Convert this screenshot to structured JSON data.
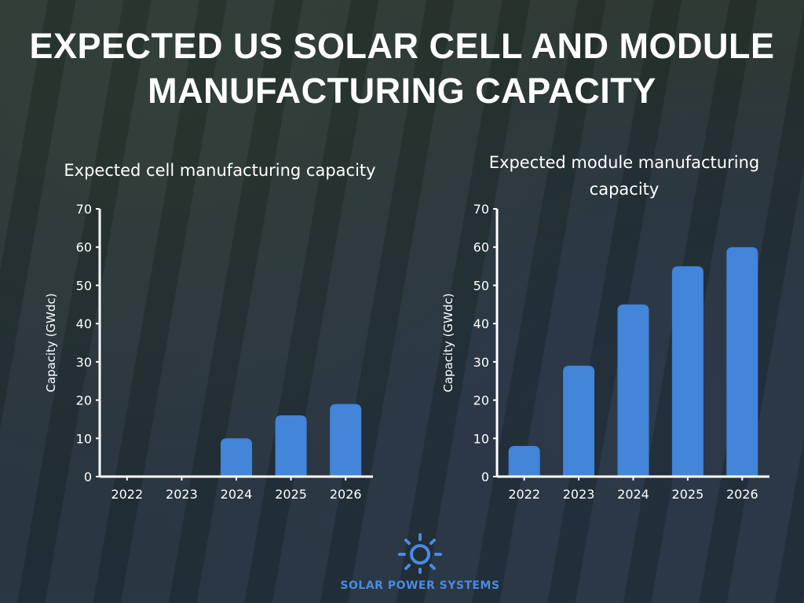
{
  "title": "EXPECTED US SOLAR CELL AND MODULE MANUFACTURING CAPACITY",
  "brand": {
    "name": "SOLAR POWER SYSTEMS",
    "icon": "sun-icon",
    "color": "#4a8be0"
  },
  "chart_data": [
    {
      "type": "bar",
      "title": "Expected cell manufacturing capacity",
      "ylabel": "Capacity (GWdc)",
      "xlabel": "",
      "categories": [
        "2022",
        "2023",
        "2024",
        "2025",
        "2026"
      ],
      "values": [
        0,
        0,
        10,
        16,
        19
      ],
      "ylim": [
        0,
        70
      ],
      "yticks": [
        0,
        10,
        20,
        30,
        40,
        50,
        60,
        70
      ],
      "bar_color": "#4285d9",
      "grid": false
    },
    {
      "type": "bar",
      "title": "Expected module manufacturing capacity",
      "ylabel": "Capacity (GWdc)",
      "xlabel": "",
      "categories": [
        "2022",
        "2023",
        "2024",
        "2025",
        "2026"
      ],
      "values": [
        8,
        29,
        45,
        55,
        60
      ],
      "ylim": [
        0,
        70
      ],
      "yticks": [
        0,
        10,
        20,
        30,
        40,
        50,
        60,
        70
      ],
      "bar_color": "#4285d9",
      "grid": false
    }
  ]
}
